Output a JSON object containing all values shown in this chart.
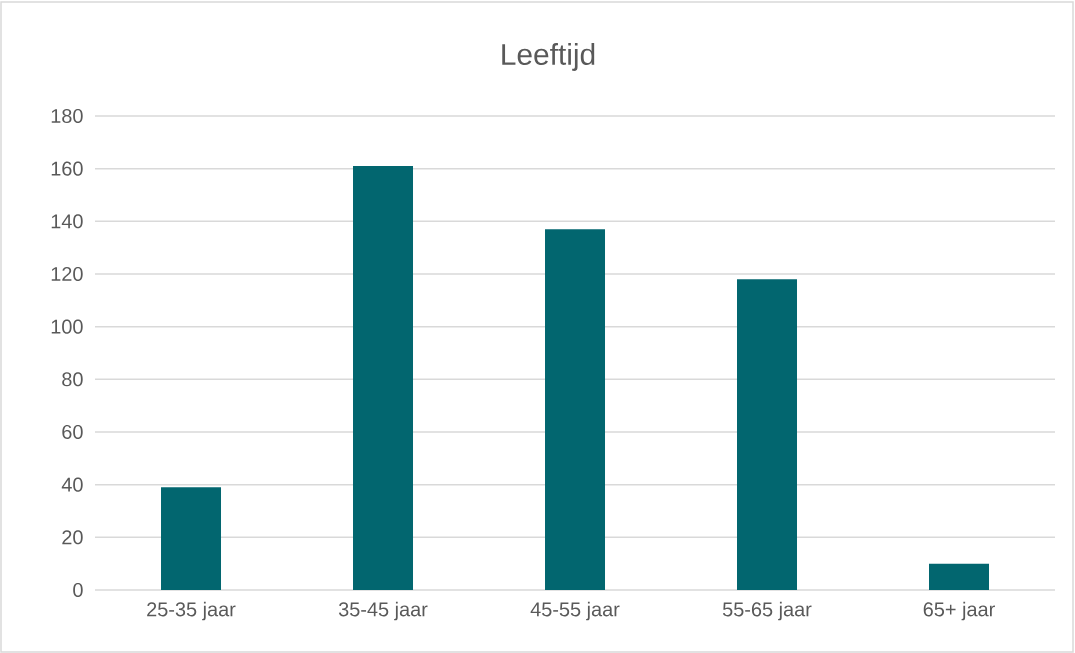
{
  "chart_data": {
    "type": "bar",
    "title": "Leeftijd",
    "categories": [
      "25-35 jaar",
      "35-45 jaar",
      "45-55 jaar",
      "55-65 jaar",
      "65+ jaar"
    ],
    "values": [
      39,
      161,
      137,
      118,
      10
    ],
    "color": "#02666f",
    "ylim": [
      0,
      180
    ],
    "yticks": [
      0,
      20,
      40,
      60,
      80,
      100,
      120,
      140,
      160,
      180
    ],
    "grid": "y"
  }
}
